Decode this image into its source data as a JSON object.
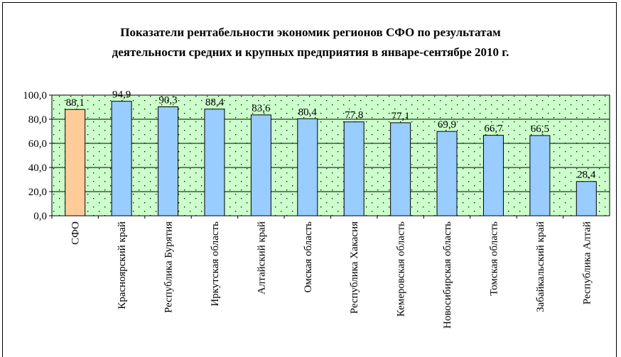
{
  "chart_data": {
    "type": "bar",
    "title": "Показатели рентабельности экономик регионов СФО по результатам",
    "subtitle": "деятельности средних и крупных предприятия в январе-сентябре 2010 г.",
    "categories": [
      "СФО",
      "Красноярский край",
      "Республика Бурятия",
      "Иркутская область",
      "Алтайский край",
      "Омская область",
      "Республика Хакасия",
      "Кемеровская область",
      "Новосибирская область",
      "Томская область",
      "Забайкальский край",
      "Республика Алтай"
    ],
    "values": [
      88.1,
      94.9,
      90.3,
      88.4,
      83.6,
      80.4,
      77.8,
      77.1,
      69.9,
      66.7,
      66.5,
      28.4
    ],
    "value_labels": [
      "88,1",
      "94,9",
      "90,3",
      "88,4",
      "83,6",
      "80,4",
      "77,8",
      "77,1",
      "69,9",
      "66,7",
      "66,5",
      "28,4"
    ],
    "colors": [
      "#ffcc99",
      "#99ccff",
      "#99ccff",
      "#99ccff",
      "#99ccff",
      "#99ccff",
      "#99ccff",
      "#99ccff",
      "#99ccff",
      "#99ccff",
      "#99ccff",
      "#99ccff"
    ],
    "ylim": [
      0,
      100
    ],
    "yticks": [
      {
        "value": 0,
        "label": "0,0"
      },
      {
        "value": 20,
        "label": "20,0"
      },
      {
        "value": 40,
        "label": "40,0"
      },
      {
        "value": 60,
        "label": "60,0"
      },
      {
        "value": 80,
        "label": "80,0"
      },
      {
        "value": 100,
        "label": "100,0"
      }
    ],
    "grid": true
  }
}
